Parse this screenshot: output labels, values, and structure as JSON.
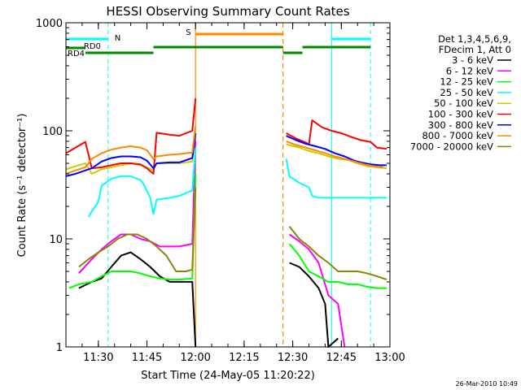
{
  "chart_data": {
    "type": "line",
    "title": "HESSI Observing Summary Count Rates",
    "xlabel": "Start Time (24-May-05 11:20:22)",
    "ylabel": "Count Rate (s⁻¹ detector⁻¹)",
    "yscale": "log",
    "ylim": [
      1,
      1000
    ],
    "xlim": [
      "11:20",
      "13:00"
    ],
    "x_ticks": [
      "11:30",
      "11:45",
      "12:00",
      "12:15",
      "12:30",
      "12:45",
      "13:00"
    ],
    "y_ticks": [
      "1",
      "10",
      "100",
      "1000"
    ],
    "legend_header": [
      "Det 1,3,4,5,6,9,",
      "FDecim 1, Att 0"
    ],
    "legend_placement": "right",
    "footer": "26-Mar-2010 10:49",
    "colors": {
      "3-6": "#000000",
      "6-12": "#ff00ff",
      "12-25": "#00ff00",
      "25-50": "#00ffff",
      "50-100": "#cccc00",
      "100-300": "#ff0000",
      "300-800": "#0000ff",
      "800-7000": "#ff8800",
      "7000-20000": "#888800"
    },
    "annotations": {
      "night_label": "N",
      "saa_label": "S",
      "rd0_label": "RD0",
      "rd4_label": "RD4"
    },
    "night_intervals": [
      [
        "11:20",
        "11:33"
      ],
      [
        "12:42",
        "12:54"
      ]
    ],
    "saa_interval": [
      "12:00",
      "12:27"
    ],
    "rd0_intervals": [
      [
        "12:00",
        "12:27"
      ]
    ],
    "rd4_intervals": [
      [
        "11:20",
        "11:26"
      ],
      [
        "11:26",
        "11:47"
      ],
      [
        "11:47",
        "12:27"
      ],
      [
        "12:27",
        "12:33"
      ],
      [
        "12:33",
        "12:54"
      ]
    ],
    "series": [
      {
        "name": "3 - 6 keV",
        "key": "3-6",
        "segments": [
          {
            "x": [
              "11:24",
              "11:28",
              "11:31",
              "11:34",
              "11:37",
              "11:40",
              "11:43",
              "11:46",
              "11:49",
              "11:52",
              "11:55",
              "11:59",
              "12:00"
            ],
            "y": [
              3.5,
              4.0,
              4.3,
              5.5,
              7.0,
              7.5,
              6.5,
              5.5,
              4.5,
              4.0,
              4.0,
              4.0,
              1.0
            ]
          },
          {
            "x": [
              "12:29",
              "12:32",
              "12:35",
              "12:38",
              "12:40",
              "12:41",
              "12:44"
            ],
            "y": [
              6.0,
              5.5,
              4.5,
              3.5,
              2.5,
              1.0,
              1.2
            ]
          }
        ]
      },
      {
        "name": "6 - 12 keV",
        "key": "6-12",
        "segments": [
          {
            "x": [
              "11:24",
              "11:28",
              "11:31",
              "11:34",
              "11:37",
              "11:40",
              "11:43",
              "11:46",
              "11:49",
              "11:52",
              "11:55",
              "11:59",
              "12:00"
            ],
            "y": [
              4.8,
              6.5,
              8.0,
              9.5,
              11,
              11,
              10,
              9.5,
              8.5,
              8.5,
              8.5,
              9.0,
              80
            ]
          },
          {
            "x": [
              "12:29",
              "12:32",
              "12:35",
              "12:38",
              "12:41",
              "12:44",
              "12:46"
            ],
            "y": [
              11,
              9.5,
              8.0,
              6.0,
              3.0,
              2.5,
              1.0
            ]
          }
        ]
      },
      {
        "name": "12 - 25 keV",
        "key": "12-25",
        "segments": [
          {
            "x": [
              "11:21",
              "11:24",
              "11:28",
              "11:31",
              "11:34",
              "11:37",
              "11:40",
              "11:43",
              "11:46",
              "11:49",
              "11:52",
              "11:55",
              "11:59",
              "12:00"
            ],
            "y": [
              3.5,
              3.8,
              4.0,
              4.5,
              5.0,
              5.0,
              5.0,
              4.8,
              4.5,
              4.3,
              4.2,
              4.2,
              4.3,
              40
            ]
          },
          {
            "x": [
              "12:29",
              "12:32",
              "12:35",
              "12:38",
              "12:41",
              "12:44",
              "12:47",
              "12:50",
              "12:53",
              "12:56",
              "12:59"
            ],
            "y": [
              9.0,
              7.0,
              5.0,
              4.5,
              4.0,
              4.0,
              3.8,
              3.8,
              3.6,
              3.5,
              3.5
            ]
          }
        ]
      },
      {
        "name": "25 - 50 keV",
        "key": "25-50",
        "segments": [
          {
            "x": [
              "11:27",
              "11:28",
              "11:30",
              "11:31",
              "11:34",
              "11:37",
              "11:40",
              "11:43",
              "11:44",
              "11:46",
              "11:47",
              "11:48",
              "11:52",
              "11:55",
              "11:59",
              "12:00"
            ],
            "y": [
              16,
              18,
              22,
              31,
              36,
              38,
              38,
              35,
              32,
              24,
              17,
              23,
              24,
              25,
              28,
              70
            ]
          },
          {
            "x": [
              "12:28",
              "12:29",
              "12:32",
              "12:35",
              "12:36",
              "12:38",
              "12:41",
              "12:44",
              "12:47",
              "12:50",
              "12:53",
              "12:56",
              "12:59"
            ],
            "y": [
              55,
              38,
              33,
              30,
              25,
              24,
              24,
              24,
              24,
              24,
              24,
              24,
              24
            ]
          }
        ]
      },
      {
        "name": "50 - 100 keV",
        "key": "50-100",
        "segments": [
          {
            "x": [
              "11:20",
              "11:23",
              "11:26",
              "11:28",
              "11:31",
              "11:34",
              "11:37",
              "11:40",
              "11:43",
              "11:45",
              "11:47",
              "11:48",
              "11:52",
              "11:55",
              "11:59",
              "12:00"
            ],
            "y": [
              44,
              47,
              50,
              40,
              44,
              46,
              48,
              50,
              48,
              46,
              43,
              50,
              50,
              50,
              52,
              100
            ]
          },
          {
            "x": [
              "12:28",
              "12:32",
              "12:35",
              "12:38",
              "12:41",
              "12:44",
              "12:47",
              "12:50",
              "12:53",
              "12:56",
              "12:59"
            ],
            "y": [
              75,
              70,
              65,
              62,
              58,
              55,
              54,
              50,
              47,
              46,
              45
            ]
          }
        ]
      },
      {
        "name": "100 - 300 keV",
        "key": "100-300",
        "segments": [
          {
            "x": [
              "11:20",
              "11:23",
              "11:26",
              "11:28",
              "11:31",
              "11:34",
              "11:37",
              "11:40",
              "11:43",
              "11:45",
              "11:47",
              "11:48",
              "11:52",
              "11:55",
              "11:59",
              "12:00"
            ],
            "y": [
              62,
              70,
              79,
              45,
              46,
              48,
              50,
              50,
              49,
              45,
              40,
              96,
              92,
              90,
              100,
              200
            ]
          },
          {
            "x": [
              "12:28",
              "12:31",
              "12:34",
              "12:35",
              "12:36",
              "12:39",
              "12:42",
              "12:45",
              "12:48",
              "12:51",
              "12:54",
              "12:56",
              "12:59"
            ],
            "y": [
              95,
              85,
              78,
              75,
              125,
              108,
              100,
              95,
              88,
              82,
              79,
              70,
              68
            ]
          }
        ]
      },
      {
        "name": "300 - 800 keV",
        "key": "300-800",
        "segments": [
          {
            "x": [
              "11:20",
              "11:23",
              "11:26",
              "11:28",
              "11:31",
              "11:34",
              "11:37",
              "11:40",
              "11:43",
              "11:45",
              "11:47",
              "11:48",
              "11:52",
              "11:55",
              "11:59",
              "12:00"
            ],
            "y": [
              38,
              40,
              43,
              45,
              52,
              56,
              58,
              58,
              57,
              53,
              45,
              50,
              51,
              51,
              56,
              95
            ]
          },
          {
            "x": [
              "12:28",
              "12:31",
              "12:34",
              "12:37",
              "12:40",
              "12:43",
              "12:46",
              "12:49",
              "12:51",
              "12:54",
              "12:57",
              "12:59"
            ],
            "y": [
              90,
              82,
              76,
              72,
              68,
              62,
              58,
              53,
              51,
              49,
              48,
              48
            ]
          }
        ]
      },
      {
        "name": "800 - 7000 keV",
        "key": "800-7000",
        "segments": [
          {
            "x": [
              "11:20",
              "11:23",
              "11:26",
              "11:28",
              "11:31",
              "11:34",
              "11:37",
              "11:40",
              "11:43",
              "11:45",
              "11:47",
              "11:48",
              "11:52",
              "11:55",
              "11:59",
              "12:00"
            ],
            "y": [
              40,
              43,
              46,
              55,
              62,
              67,
              70,
              72,
              70,
              66,
              55,
              58,
              60,
              61,
              63,
              110
            ]
          },
          {
            "x": [
              "12:28",
              "12:31",
              "12:34",
              "12:37",
              "12:40",
              "12:43",
              "12:46",
              "12:49",
              "12:52",
              "12:55",
              "12:58"
            ],
            "y": [
              80,
              74,
              70,
              66,
              62,
              58,
              55,
              52,
              49,
              47,
              46
            ]
          }
        ]
      },
      {
        "name": "7000 - 20000 keV",
        "key": "7000-20000",
        "segments": [
          {
            "x": [
              "11:24",
              "11:27",
              "11:30",
              "11:33",
              "11:36",
              "11:39",
              "11:42",
              "11:45",
              "11:48",
              "11:51",
              "11:54",
              "11:57",
              "11:59",
              "12:00"
            ],
            "y": [
              5.5,
              6.5,
              7.5,
              8.5,
              10,
              11,
              11,
              10,
              8.5,
              7,
              5,
              5,
              5.2,
              30
            ]
          },
          {
            "x": [
              "12:29",
              "12:32",
              "12:35",
              "12:38",
              "12:41",
              "12:44",
              "12:47",
              "12:50",
              "12:53",
              "12:56",
              "12:59"
            ],
            "y": [
              13,
              10,
              8.5,
              7.0,
              6.0,
              5.0,
              5.0,
              5.0,
              4.8,
              4.5,
              4.2
            ]
          }
        ]
      }
    ]
  }
}
